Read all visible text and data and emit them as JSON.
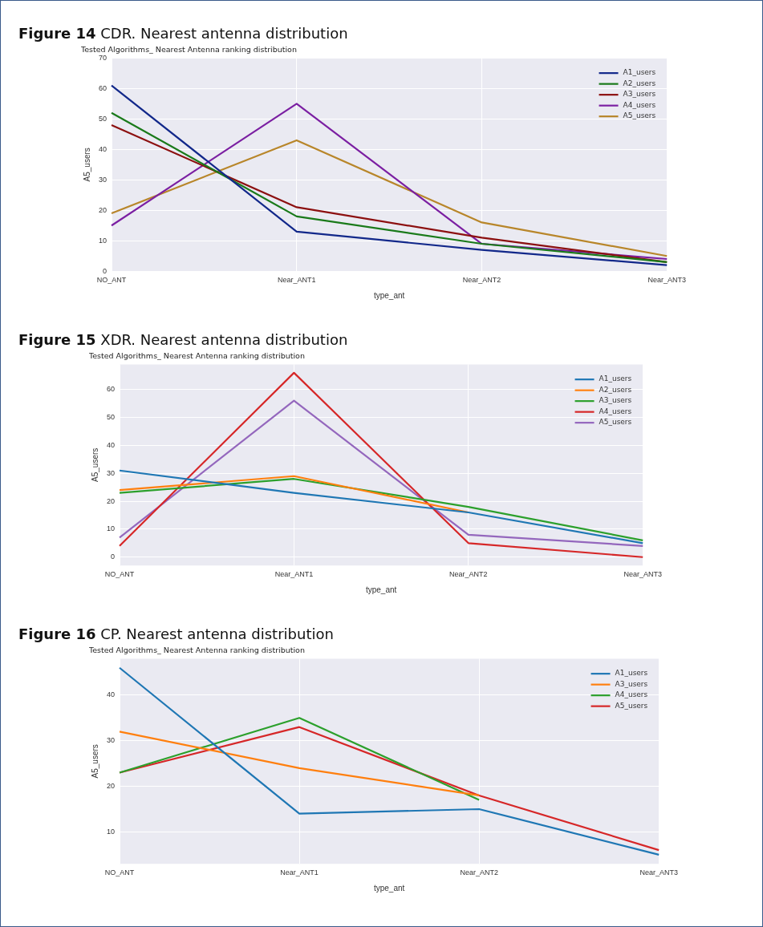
{
  "chart_data": [
    {
      "type": "line",
      "title": "Figure 14 CDR. Nearest antenna distribution",
      "subtitle": "Tested Algorithms_ Nearest Antenna ranking distribution",
      "xlabel": "type_ant",
      "ylabel": "A5_users",
      "categories": [
        "NO_ANT",
        "Near_ANT1",
        "Near_ANT2",
        "Near_ANT3"
      ],
      "series": [
        {
          "name": "A1_users",
          "color": "#12288a",
          "values": [
            61,
            13,
            7,
            2
          ]
        },
        {
          "name": "A2_users",
          "color": "#1a7a1a",
          "values": [
            52,
            18,
            9,
            3
          ]
        },
        {
          "name": "A3_users",
          "color": "#8c1010",
          "values": [
            48,
            21,
            11,
            3
          ]
        },
        {
          "name": "A4_users",
          "color": "#7b1fa2",
          "values": [
            15,
            55,
            9,
            4
          ]
        },
        {
          "name": "A5_users",
          "color": "#b8862a",
          "values": [
            19,
            43,
            16,
            5
          ]
        }
      ],
      "ylim": [
        0,
        70
      ],
      "yticks": [
        0,
        10,
        20,
        30,
        40,
        50,
        60,
        70
      ],
      "grid": true,
      "legend": "top right"
    },
    {
      "type": "line",
      "title": "Figure 15 XDR. Nearest antenna distribution",
      "subtitle": "Tested Algorithms_ Nearest Antenna ranking distribution",
      "xlabel": "type_ant",
      "ylabel": "A5_users",
      "categories": [
        "NO_ANT",
        "Near_ANT1",
        "Near_ANT2",
        "Near_ANT3"
      ],
      "series": [
        {
          "name": "A1_users",
          "color": "#1f77b4",
          "values": [
            31,
            23,
            16,
            5
          ]
        },
        {
          "name": "A2_users",
          "color": "#ff7f0e",
          "values": [
            24,
            29,
            16,
            null
          ]
        },
        {
          "name": "A3_users",
          "color": "#2ca02c",
          "values": [
            23,
            28,
            18,
            6
          ]
        },
        {
          "name": "A4_users",
          "color": "#d62728",
          "values": [
            4,
            66,
            5,
            0
          ]
        },
        {
          "name": "A5_users",
          "color": "#9467bd",
          "values": [
            7,
            56,
            8,
            4
          ]
        }
      ],
      "ylim": [
        -3,
        69
      ],
      "yticks": [
        0,
        10,
        20,
        30,
        40,
        50,
        60
      ],
      "grid": true,
      "legend": "top right"
    },
    {
      "type": "line",
      "title": "Figure 16 CP. Nearest antenna distribution",
      "subtitle": "Tested Algorithms_ Nearest Antenna ranking distribution",
      "xlabel": "type_ant",
      "ylabel": "A5_users",
      "categories": [
        "NO_ANT",
        "Near_ANT1",
        "Near_ANT2",
        "Near_ANT3"
      ],
      "series": [
        {
          "name": "A1_users",
          "color": "#1f77b4",
          "values": [
            46,
            14,
            15,
            5
          ]
        },
        {
          "name": "A3_users",
          "color": "#ff7f0e",
          "values": [
            32,
            24,
            18,
            null
          ]
        },
        {
          "name": "A4_users",
          "color": "#2ca02c",
          "values": [
            23,
            35,
            17,
            null
          ]
        },
        {
          "name": "A5_users",
          "color": "#d62728",
          "values": [
            23,
            33,
            18,
            6
          ]
        }
      ],
      "ylim": [
        3,
        48
      ],
      "yticks": [
        10,
        20,
        30,
        40
      ],
      "grid": true,
      "legend": "top right"
    }
  ]
}
